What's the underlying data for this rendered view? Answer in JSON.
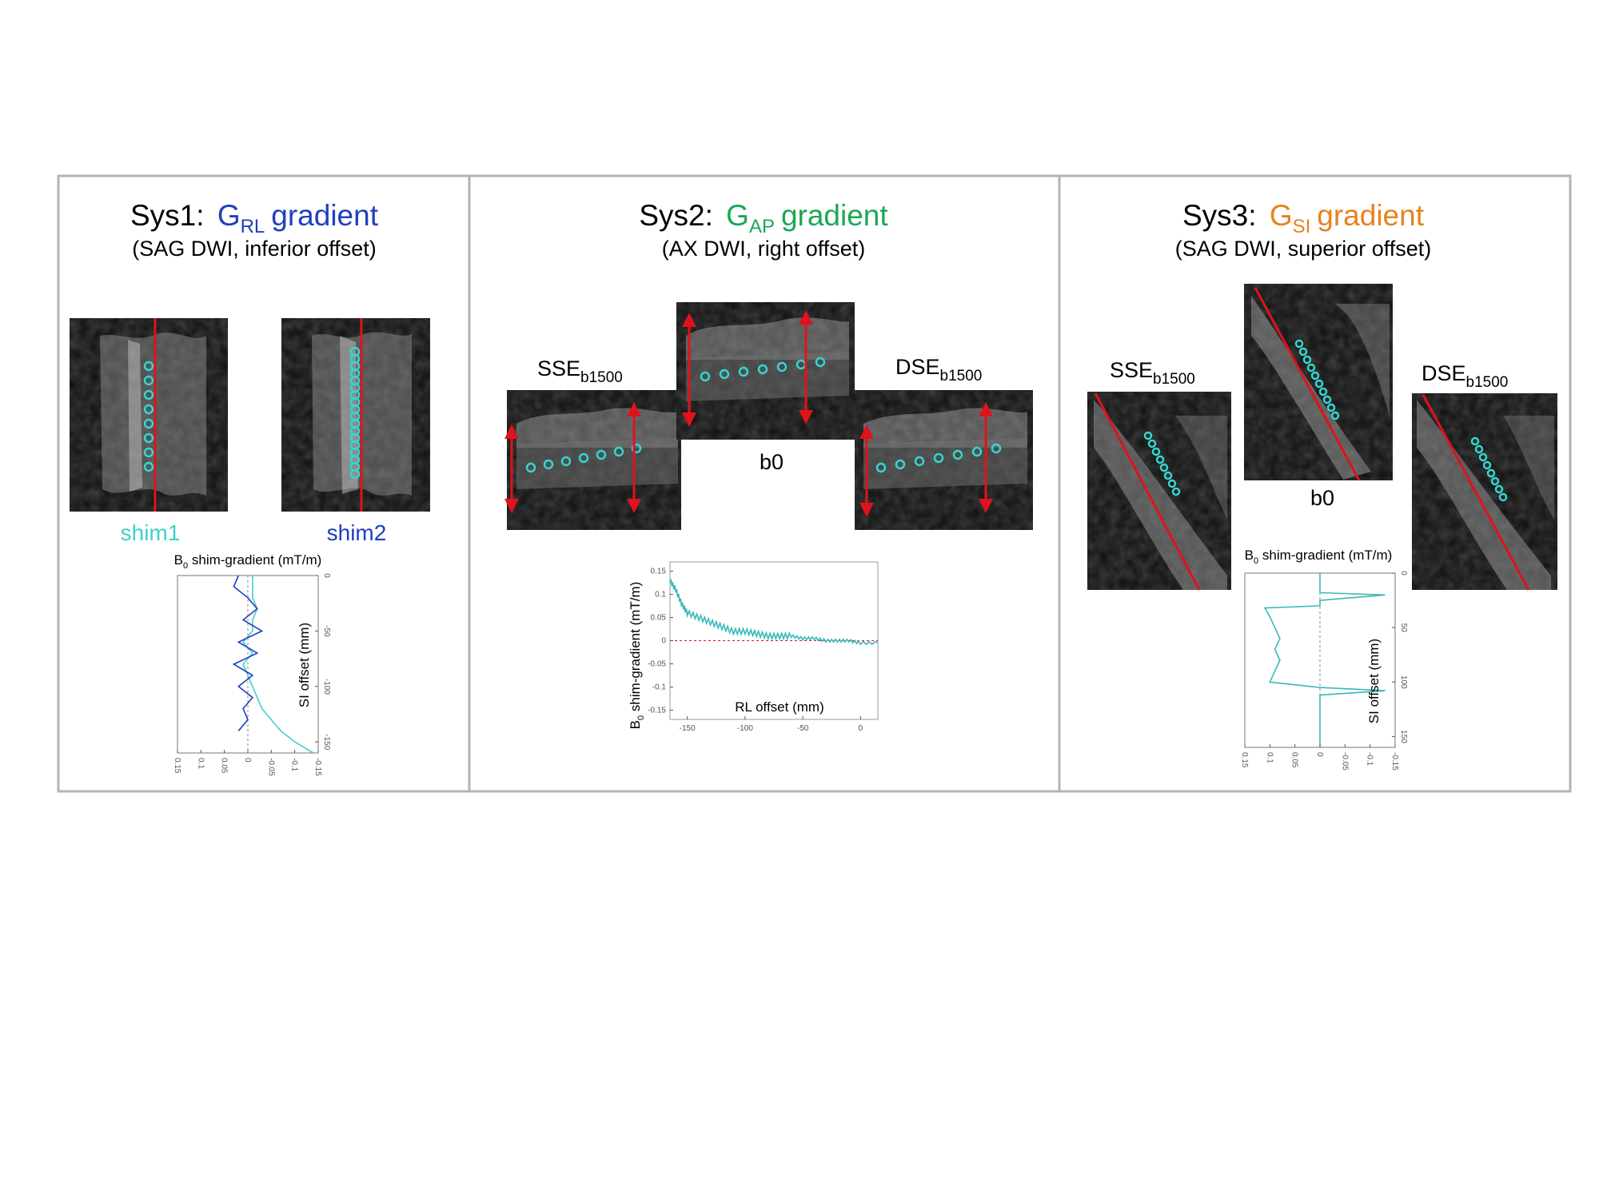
{
  "colors": {
    "panel_border": "#b4b4b4",
    "sys1_accent": "#1f3fbf",
    "sys2_accent": "#1aa855",
    "sys3_accent": "#e8821e",
    "shim1": "#40d0cc",
    "shim2": "#1f3fbf",
    "roi": "#33d6d0",
    "red_marker": "#e0121b",
    "curve": "#3ab8b8",
    "mri_bg": "#0e0e0e"
  },
  "panels": [
    {
      "system": "Sys1:",
      "gradient_main": "G",
      "gradient_sub": "RL",
      "gradient_word": "gradient",
      "subtitle": "(SAG DWI, inferior offset)",
      "image_labels": [
        "shim1",
        "shim2"
      ],
      "plot_title_main": "B",
      "plot_title_sub": "0",
      "plot_title_rest": " shim-gradient (mT/m)",
      "plot_axis_label": "SI offset (mm)"
    },
    {
      "system": "Sys2:",
      "gradient_main": "G",
      "gradient_sub": "AP",
      "gradient_word": "gradient",
      "subtitle": "(AX DWI, right offset)",
      "image_labels": [
        {
          "main": "SSE",
          "sub": "b1500"
        },
        {
          "main": "b0",
          "sub": ""
        },
        {
          "main": "DSE",
          "sub": "b1500"
        }
      ],
      "plot_ylabel_main": "B",
      "plot_ylabel_sub": "0",
      "plot_ylabel_rest": " shim-gradient (mT/m)",
      "plot_xlabel": "RL offset (mm)"
    },
    {
      "system": "Sys3:",
      "gradient_main": "G",
      "gradient_sub": "SI",
      "gradient_word": "gradient",
      "subtitle": "(SAG DWI, superior offset)",
      "image_labels": [
        {
          "main": "SSE",
          "sub": "b1500"
        },
        {
          "main": "b0",
          "sub": ""
        },
        {
          "main": "DSE",
          "sub": "b1500"
        }
      ],
      "plot_title_main": "B",
      "plot_title_sub": "0",
      "plot_title_rest": " shim-gradient (mT/m)",
      "plot_axis_label": "SI offset (mm)"
    }
  ],
  "chart_data": [
    {
      "type": "line",
      "panel": "Sys1",
      "orientation": "transposed (values on horizontal axis, SI offset on vertical axis)",
      "xlabel": "B0 shim-gradient (mT/m)",
      "ylabel": "SI offset (mm)",
      "x_ticks": [
        "0.15",
        "0.1",
        "0.05",
        "0",
        "-0.05",
        "-0.1",
        "-0.15"
      ],
      "y_ticks": [
        "0",
        "-50",
        "-100",
        "-150"
      ],
      "xlim": [
        0.15,
        -0.15
      ],
      "ylim": [
        0,
        -160
      ],
      "series": [
        {
          "name": "shim1",
          "si_offset": [
            0,
            -10,
            -20,
            -30,
            -40,
            -50,
            -60,
            -70,
            -80,
            -90,
            -100,
            -110,
            -120,
            -130,
            -140,
            -150,
            -160
          ],
          "values": [
            -0.01,
            -0.01,
            -0.01,
            -0.02,
            -0.01,
            -0.01,
            0.01,
            -0.01,
            0.01,
            0.0,
            -0.01,
            -0.02,
            -0.03,
            -0.05,
            -0.07,
            -0.1,
            -0.14
          ]
        },
        {
          "name": "shim2",
          "si_offset": [
            0,
            -10,
            -20,
            -30,
            -40,
            -50,
            -60,
            -70,
            -80,
            -90,
            -100,
            -110,
            -120,
            -130,
            -140
          ],
          "values": [
            0.02,
            0.03,
            0.0,
            -0.02,
            0.01,
            -0.03,
            0.02,
            -0.02,
            0.03,
            -0.01,
            0.02,
            -0.01,
            0.01,
            0.0,
            0.02
          ]
        }
      ]
    },
    {
      "type": "line",
      "panel": "Sys2",
      "xlabel": "RL offset (mm)",
      "ylabel": "B0 shim-gradient (mT/m)",
      "x_ticks": [
        "-150",
        "-100",
        "-50",
        "0"
      ],
      "y_ticks": [
        "0.15",
        "0.1",
        "0.05",
        "0",
        "-0.05",
        "-0.1",
        "-0.15"
      ],
      "xlim": [
        -165,
        15
      ],
      "ylim": [
        -0.17,
        0.17
      ],
      "series": [
        {
          "x": [
            -165,
            -160,
            -155,
            -150,
            -140,
            -130,
            -120,
            -110,
            -100,
            -90,
            -80,
            -70,
            -60,
            -50,
            -40,
            -30,
            -20,
            -10,
            0,
            15
          ],
          "values": [
            0.13,
            0.11,
            0.08,
            0.06,
            0.05,
            0.04,
            0.03,
            0.02,
            0.02,
            0.015,
            0.01,
            0.01,
            0.01,
            0.005,
            0.005,
            0.0,
            0.0,
            0.0,
            -0.005,
            -0.005
          ]
        }
      ],
      "reference_line": 0
    },
    {
      "type": "line",
      "panel": "Sys3",
      "orientation": "transposed (values on horizontal axis, SI offset on vertical axis)",
      "xlabel": "B0 shim-gradient (mT/m)",
      "ylabel": "SI offset (mm)",
      "x_ticks": [
        "0.15",
        "0.1",
        "0.05",
        "0",
        "-0.05",
        "-0.1",
        "-0.15"
      ],
      "y_ticks": [
        "150",
        "100",
        "50",
        "0"
      ],
      "xlim": [
        0.15,
        -0.15
      ],
      "ylim": [
        0,
        160
      ],
      "series": [
        {
          "si_offset": [
            0,
            18,
            20,
            25,
            30,
            32,
            40,
            50,
            60,
            70,
            80,
            90,
            100,
            105,
            108,
            112,
            150,
            160
          ],
          "values": [
            0.0,
            0.0,
            -0.13,
            0.0,
            0.0,
            0.11,
            0.1,
            0.09,
            0.08,
            0.09,
            0.08,
            0.09,
            0.1,
            0.0,
            -0.13,
            0.0,
            0.0,
            0.0
          ]
        }
      ]
    }
  ]
}
